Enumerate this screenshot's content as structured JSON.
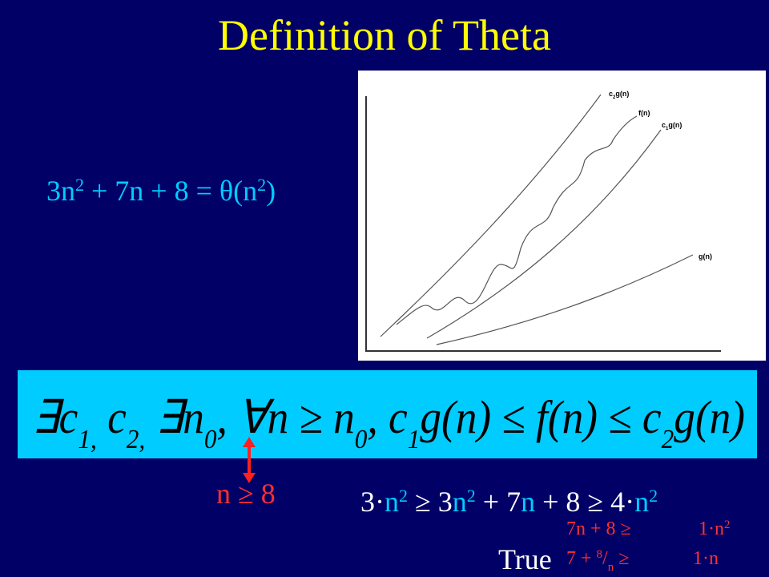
{
  "title": "Definition of  Theta",
  "equation": [
    "3n",
    "2",
    " + 7n  + 8 = θ(n",
    "2",
    ")"
  ],
  "graph": {
    "labels": [
      [
        "c",
        "2",
        "g(n)"
      ],
      [
        "f(n)"
      ],
      [
        "c",
        "1",
        "g(n)"
      ],
      [
        "g(n)"
      ]
    ]
  },
  "definition": [
    "∃c",
    "1,",
    " c",
    "2,",
    " ∃n",
    "0",
    ", ∀n ≥ n",
    "0",
    ", c",
    "1",
    "g(n) ≤ f(n) ≤ c",
    "2",
    "g(n)"
  ],
  "condition": "n ≥ 8",
  "inequality": [
    "3·",
    "n",
    "2",
    " ≥ 3",
    "n",
    "2",
    " + 7",
    "n",
    "  + 8  ≥  4·",
    "n",
    "2"
  ],
  "steps": [
    [
      "7n  + 8  ≥",
      "1·n",
      "2"
    ],
    [
      "7  + ",
      "8",
      "/",
      "n",
      " ≥",
      "1·n"
    ]
  ],
  "verdict": "True"
}
